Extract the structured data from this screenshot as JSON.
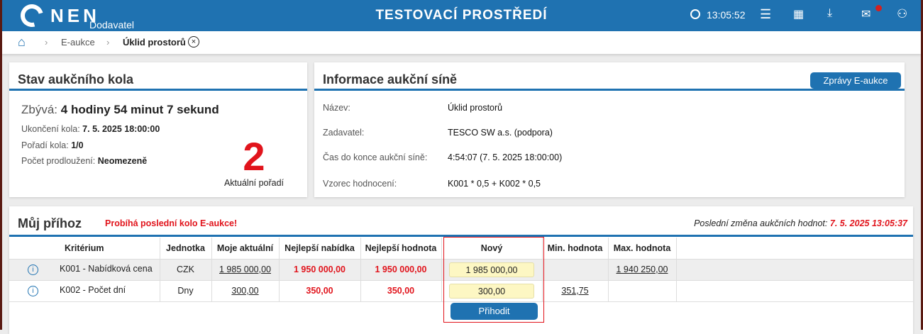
{
  "header": {
    "brand": "NEN",
    "brand_sub": "Dodavatel",
    "title": "TESTOVACÍ PROSTŘEDÍ",
    "time": "13:05:52",
    "icons": [
      "clock-icon",
      "menu-icon",
      "calendar-icon",
      "download-icon",
      "mail-icon",
      "user-icon"
    ],
    "accent": "#1f72b1"
  },
  "breadcrumb": {
    "items": [
      "E-aukce",
      "Úklid prostorů"
    ]
  },
  "status": {
    "title": "Stav aukčního kola",
    "remaining_label": "Zbývá:",
    "remaining": "4 hodiny 54 minut 7 sekund",
    "end_label": "Ukončení kola:",
    "end": "7. 5. 2025 18:00:00",
    "round_label": "Pořadí kola:",
    "round": "1/0",
    "ext_label": "Počet prodloužení:",
    "ext": "Neomezeně",
    "rank": "2",
    "rank_label": "Aktuální pořadí"
  },
  "info": {
    "title": "Informace aukční síně",
    "button": "Zprávy E-aukce",
    "rows": [
      {
        "label": "Název:",
        "value": "Úklid prostorů"
      },
      {
        "label": "Zadavatel:",
        "value": "TESCO SW a.s. (podpora)"
      },
      {
        "label": "Čas do konce aukční síně:",
        "value": "4:54:07 (7. 5. 2025 18:00:00)"
      },
      {
        "label": "Vzorec hodnocení:",
        "value": "K001 * 0,5 + K002 * 0,5"
      }
    ]
  },
  "bid": {
    "title": "Můj příhoz",
    "warning": "Probíhá poslední kolo E-aukce!",
    "last_change_label": "Poslední změna aukčních hodnot:",
    "last_change": "7. 5. 2025 13:05:37",
    "columns": [
      "Kritérium",
      "Jednotka",
      "Moje aktuální",
      "Nejlepší nabídka",
      "Nejlepší hodnota",
      "Nový",
      "Min. hodnota",
      "Max. hodnota"
    ],
    "rows": [
      {
        "criterion": "K001 - Nabídková cena",
        "unit": "CZK",
        "mine": "1 985 000,00",
        "best_offer": "1 950 000,00",
        "best_value": "1 950 000,00",
        "new": "1 985 000,00",
        "min": "",
        "max": "1 940 250,00"
      },
      {
        "criterion": "K002 - Počet dní",
        "unit": "Dny",
        "mine": "300,00",
        "best_offer": "350,00",
        "best_value": "350,00",
        "new": "300,00",
        "min": "351,75",
        "max": ""
      }
    ],
    "submit": "Přihodit"
  }
}
